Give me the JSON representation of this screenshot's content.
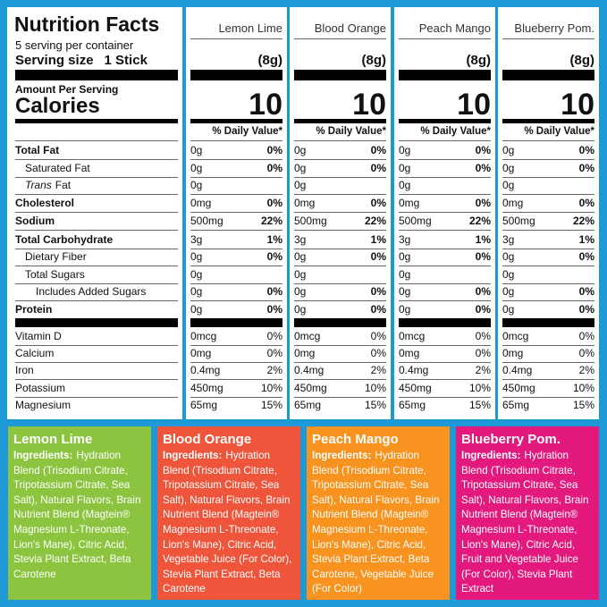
{
  "label": {
    "title": "Nutrition Facts",
    "servings": "5 serving per container",
    "serving_size_label": "Serving size",
    "serving_size": "1 Stick",
    "amount_per_serving": "Amount Per Serving",
    "calories_label": "Calories",
    "daily_value_header": "% Daily Value*"
  },
  "nutrients": [
    {
      "label": "Total Fat"
    },
    {
      "label": "Saturated Fat"
    },
    {
      "label_italic": "Trans",
      "label": "Fat"
    },
    {
      "label": "Cholesterol"
    },
    {
      "label": "Sodium"
    },
    {
      "label": "Total Carbohydrate"
    },
    {
      "label": "Dietary Fiber"
    },
    {
      "label": "Total Sugars"
    },
    {
      "label": "Includes Added Sugars"
    },
    {
      "label": "Protein"
    },
    {
      "label": "Vitamin D"
    },
    {
      "label": "Calcium"
    },
    {
      "label": "Iron"
    },
    {
      "label": "Potassium"
    },
    {
      "label": "Magnesium"
    }
  ],
  "ingredients_label": "Ingredients:",
  "products": [
    {
      "name": "Lemon Lime",
      "card_name": "Lemon Lime",
      "serving_weight": "(8g)",
      "calories": 10,
      "amounts": [
        "0g",
        "0g",
        "0g",
        "0mg",
        "500mg",
        "3g",
        "0g",
        "0g",
        "0g",
        "0g",
        "0mcg",
        "0mg",
        "0.4mg",
        "450mg",
        "65mg"
      ],
      "daily_values": [
        "0%",
        "0%",
        null,
        "0%",
        "22%",
        "1%",
        "0%",
        null,
        "0%",
        "0%",
        "0%",
        "0%",
        "2%",
        "10%",
        "15%"
      ],
      "ingredients": "Hydration Blend (Trisodium Citrate, Tripotassium Citrate, Sea Salt), Natural Flavors, Brain Nutrient Blend (Magtein® Magnesium L-Threonate, Lion's Mane), Citric Acid, Stevia Plant Extract, Beta Carotene",
      "color": "#8cc43f"
    },
    {
      "name": "Blood Orange",
      "card_name": "Blood Orange",
      "serving_weight": "(8g)",
      "calories": 10,
      "amounts": [
        "0g",
        "0g",
        "0g",
        "0mg",
        "500mg",
        "3g",
        "0g",
        "0g",
        "0g",
        "0g",
        "0mcg",
        "0mg",
        "0.4mg",
        "450mg",
        "65mg"
      ],
      "daily_values": [
        "0%",
        "0%",
        null,
        "0%",
        "22%",
        "1%",
        "0%",
        null,
        "0%",
        "0%",
        "0%",
        "0%",
        "2%",
        "10%",
        "15%"
      ],
      "ingredients": "Hydration Blend (Trisodium Citrate, Tripotassium Citrate, Sea Salt), Natural Flavors, Brain Nutrient Blend (Magtein® Magnesium L-Threonate, Lion's Mane), Citric Acid, Vegetable Juice (For Color), Stevia Plant Extract, Beta Carotene",
      "color": "#ef553b"
    },
    {
      "name": "Peach Mango",
      "card_name": "Peach Mango",
      "serving_weight": "(8g)",
      "calories": 10,
      "amounts": [
        "0g",
        "0g",
        "0g",
        "0mg",
        "500mg",
        "3g",
        "0g",
        "0g",
        "0g",
        "0g",
        "0mcg",
        "0mg",
        "0.4mg",
        "450mg",
        "65mg"
      ],
      "daily_values": [
        "0%",
        "0%",
        null,
        "0%",
        "22%",
        "1%",
        "0%",
        null,
        "0%",
        "0%",
        "0%",
        "0%",
        "2%",
        "10%",
        "15%"
      ],
      "ingredients": "Hydration Blend (Trisodium Citrate, Tripotassium Citrate, Sea Salt), Natural Flavors, Brain Nutrient Blend (Magtein® Magnesium L-Threonate, Lion's Mane), Citric Acid, Stevia Plant Extract, Beta Carotene, Vegetable Juice (For Color)",
      "color": "#f7931e"
    },
    {
      "name": "Blueberry Pom.",
      "card_name": "Blueberry Pom.",
      "serving_weight": "(8g)",
      "calories": 10,
      "amounts": [
        "0g",
        "0g",
        "0g",
        "0mg",
        "500mg",
        "3g",
        "0g",
        "0g",
        "0g",
        "0g",
        "0mcg",
        "0mg",
        "0.4mg",
        "450mg",
        "65mg"
      ],
      "daily_values": [
        "0%",
        "0%",
        null,
        "0%",
        "22%",
        "1%",
        "0%",
        null,
        "0%",
        "0%",
        "0%",
        "0%",
        "2%",
        "10%",
        "15%"
      ],
      "ingredients": "Hydration Blend (Trisodium Citrate, Tripotassium Citrate, Sea Salt), Natural Flavors, Brain Nutrient Blend (Magtein® Magnesium L-Threonate, Lion's Mane), Citric Acid, Fruit and Vegetable Juice (For Color), Stevia Plant Extract",
      "color": "#e3197d"
    }
  ]
}
